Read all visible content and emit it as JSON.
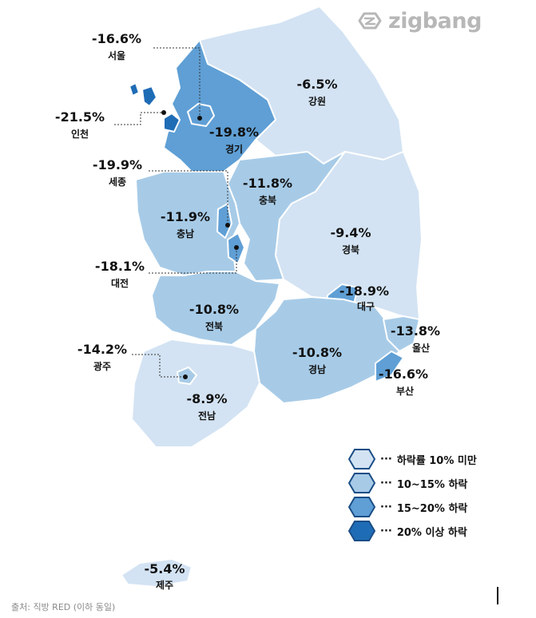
{
  "brand": {
    "name": "zigbang",
    "color": "#b7b7b7"
  },
  "source_note": "출처: 직방 RED (이하 동일)",
  "colors": {
    "tier1": "#d3e3f3",
    "tier2": "#a7cbe7",
    "tier3": "#5f9fd5",
    "tier4": "#1f6cb6",
    "border": "#ffffff",
    "outline": "#1a4d86"
  },
  "legend": [
    {
      "label": "하락률 10% 미만",
      "tier": "tier1",
      "dots": "···"
    },
    {
      "label": "10~15% 하락",
      "tier": "tier2",
      "dots": "···"
    },
    {
      "label": "15~20% 하락",
      "tier": "tier3",
      "dots": "···"
    },
    {
      "label": "20% 이상 하락",
      "tier": "tier4",
      "dots": "···"
    }
  ],
  "regions": [
    {
      "id": "seoul",
      "name": "서울",
      "value": "-16.6%",
      "tier": "tier3"
    },
    {
      "id": "incheon",
      "name": "인천",
      "value": "-21.5%",
      "tier": "tier4"
    },
    {
      "id": "gyeonggi",
      "name": "경기",
      "value": "-19.8%",
      "tier": "tier3"
    },
    {
      "id": "gangwon",
      "name": "강원",
      "value": "-6.5%",
      "tier": "tier1"
    },
    {
      "id": "sejong",
      "name": "세종",
      "value": "-19.9%",
      "tier": "tier3"
    },
    {
      "id": "chungbuk",
      "name": "충북",
      "value": "-11.8%",
      "tier": "tier2"
    },
    {
      "id": "chungnam",
      "name": "충남",
      "value": "-11.9%",
      "tier": "tier2"
    },
    {
      "id": "gyeongbuk",
      "name": "경북",
      "value": "-9.4%",
      "tier": "tier1"
    },
    {
      "id": "daejeon",
      "name": "대전",
      "value": "-18.1%",
      "tier": "tier3"
    },
    {
      "id": "daegu",
      "name": "대구",
      "value": "-18.9%",
      "tier": "tier3"
    },
    {
      "id": "jeonbuk",
      "name": "전북",
      "value": "-10.8%",
      "tier": "tier2"
    },
    {
      "id": "ulsan",
      "name": "울산",
      "value": "-13.8%",
      "tier": "tier2"
    },
    {
      "id": "gwangju",
      "name": "광주",
      "value": "-14.2%",
      "tier": "tier2"
    },
    {
      "id": "gyeongnam",
      "name": "경남",
      "value": "-10.8%",
      "tier": "tier2"
    },
    {
      "id": "busan",
      "name": "부산",
      "value": "-16.6%",
      "tier": "tier3"
    },
    {
      "id": "jeonnam",
      "name": "전남",
      "value": "-8.9%",
      "tier": "tier1"
    },
    {
      "id": "jeju",
      "name": "제주",
      "value": "-5.4%",
      "tier": "tier1"
    }
  ]
}
